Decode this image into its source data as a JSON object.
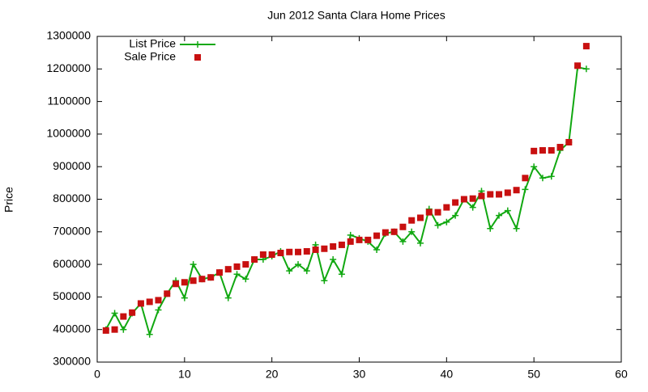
{
  "chart_data": {
    "type": "line",
    "title": "Jun 2012 Santa Clara Home Prices",
    "y_label": "Price",
    "x": [
      1,
      2,
      3,
      4,
      5,
      6,
      7,
      8,
      9,
      10,
      11,
      12,
      13,
      14,
      15,
      16,
      17,
      18,
      19,
      20,
      21,
      22,
      23,
      24,
      25,
      26,
      27,
      28,
      29,
      30,
      31,
      32,
      33,
      34,
      35,
      36,
      37,
      38,
      39,
      40,
      41,
      42,
      43,
      44,
      45,
      46,
      47,
      48,
      49,
      50,
      51,
      52,
      53,
      54,
      55,
      56
    ],
    "series": [
      {
        "name": "List Price",
        "color": "#11a811",
        "mode": "linespoints",
        "values": [
          400000,
          450000,
          400000,
          450000,
          480000,
          385000,
          460000,
          510000,
          550000,
          497000,
          600000,
          555000,
          560000,
          575000,
          497000,
          570000,
          555000,
          615000,
          615000,
          625000,
          640000,
          580000,
          600000,
          580000,
          660000,
          550000,
          615000,
          570000,
          690000,
          680000,
          670000,
          645000,
          695000,
          700000,
          670000,
          700000,
          665000,
          770000,
          720000,
          730000,
          750000,
          800000,
          775000,
          825000,
          710000,
          750000,
          765000,
          710000,
          830000,
          900000,
          865000,
          870000,
          950000,
          975000,
          1205000,
          1200000
        ]
      },
      {
        "name": "Sale Price",
        "color": "#c81010",
        "mode": "points",
        "values": [
          397000,
          400000,
          440000,
          452000,
          480000,
          485000,
          490000,
          510000,
          540000,
          545000,
          550000,
          555000,
          560000,
          575000,
          585000,
          593000,
          600000,
          615000,
          630000,
          630000,
          635000,
          638000,
          638000,
          640000,
          645000,
          648000,
          655000,
          660000,
          670000,
          675000,
          675000,
          688000,
          698000,
          700000,
          715000,
          735000,
          743000,
          760000,
          760000,
          775000,
          790000,
          800000,
          802000,
          810000,
          815000,
          815000,
          820000,
          828000,
          865000,
          948000,
          950000,
          950000,
          960000,
          975000,
          1210000,
          1270000
        ]
      }
    ],
    "xlim": [
      0,
      60
    ],
    "xticks": [
      0,
      10,
      20,
      30,
      40,
      50,
      60
    ],
    "ylim": [
      300000,
      1300000
    ],
    "yticks": [
      300000,
      400000,
      500000,
      600000,
      700000,
      800000,
      900000,
      1000000,
      1100000,
      1200000,
      1300000
    ],
    "grid": false,
    "legend": "top-left"
  }
}
